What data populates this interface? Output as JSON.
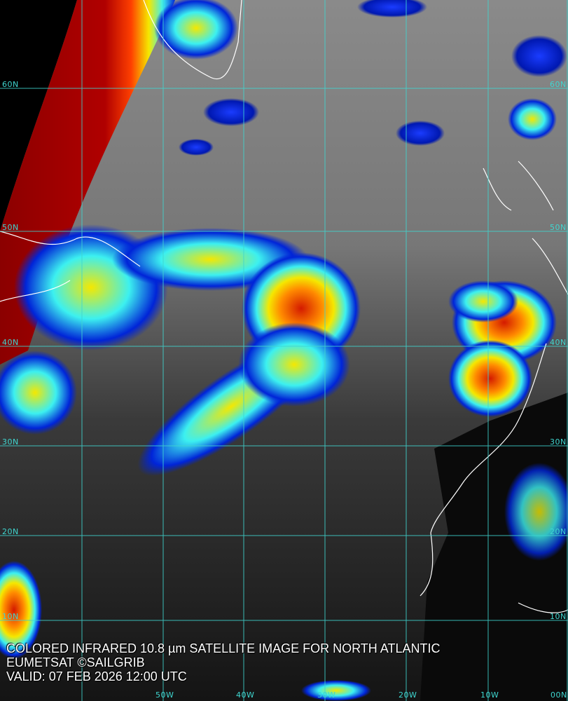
{
  "caption": {
    "title": "COLORED INFRARED 10.8 µm SATELLITE IMAGE FOR NORTH ATLANTIC",
    "credit": "EUMETSAT ©SAILGRIB",
    "valid": "VALID:  07 FEB 2026 12:00 UTC"
  },
  "grid": {
    "color": "#3fd6d0",
    "lat_labels": [
      "60N",
      "50N",
      "40N",
      "30N",
      "20N",
      "10N"
    ],
    "lon_labels": [
      "50W",
      "40W",
      "30W",
      "20W",
      "10W",
      "00N"
    ]
  },
  "colors": {
    "cold_top_red": "#d41a00",
    "mid_yellow": "#f5e800",
    "cyan": "#3cf0f0",
    "blue": "#0024d8",
    "coastline": "#ffffff"
  }
}
